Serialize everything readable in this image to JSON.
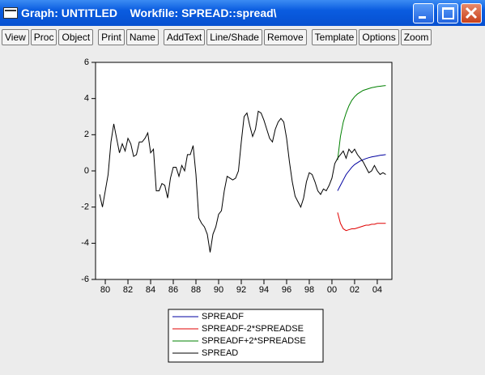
{
  "window": {
    "title": "Graph: UNTITLED    Workfile: SPREAD::spread\\"
  },
  "toolbar": [
    [
      "View",
      "Proc",
      "Object"
    ],
    [
      "Print",
      "Name"
    ],
    [
      "AddText",
      "Line/Shade",
      "Remove"
    ],
    [
      "Template",
      "Options",
      "Zoom"
    ]
  ],
  "chart_data": {
    "type": "line",
    "x": [
      1979.5,
      1979.75,
      1980,
      1980.25,
      1980.5,
      1980.75,
      1981,
      1981.25,
      1981.5,
      1981.75,
      1982,
      1982.25,
      1982.5,
      1982.75,
      1983,
      1983.25,
      1983.5,
      1983.75,
      1984,
      1984.25,
      1984.5,
      1984.75,
      1985,
      1985.25,
      1985.5,
      1985.75,
      1986,
      1986.25,
      1986.5,
      1986.75,
      1987,
      1987.25,
      1987.5,
      1987.75,
      1988,
      1988.25,
      1988.5,
      1988.75,
      1989,
      1989.25,
      1989.5,
      1989.75,
      1990,
      1990.25,
      1990.5,
      1990.75,
      1991,
      1991.25,
      1991.5,
      1991.75,
      1992,
      1992.25,
      1992.5,
      1992.75,
      1993,
      1993.25,
      1993.5,
      1993.75,
      1994,
      1994.25,
      1994.5,
      1994.75,
      1995,
      1995.25,
      1995.5,
      1995.75,
      1996,
      1996.25,
      1996.5,
      1996.75,
      1997,
      1997.25,
      1997.5,
      1997.75,
      1998,
      1998.25,
      1998.5,
      1998.75,
      1999,
      1999.25,
      1999.5,
      1999.75,
      2000,
      2000.25,
      2000.5,
      2000.75,
      2001,
      2001.25,
      2001.5,
      2001.75,
      2002,
      2002.25,
      2002.5,
      2002.75,
      2003,
      2003.25,
      2003.5,
      2003.75,
      2004,
      2004.25,
      2004.5,
      2004.75
    ],
    "series": [
      {
        "name": "SPREADF",
        "color": "#0000a0",
        "values": [
          null,
          null,
          null,
          null,
          null,
          null,
          null,
          null,
          null,
          null,
          null,
          null,
          null,
          null,
          null,
          null,
          null,
          null,
          null,
          null,
          null,
          null,
          null,
          null,
          null,
          null,
          null,
          null,
          null,
          null,
          null,
          null,
          null,
          null,
          null,
          null,
          null,
          null,
          null,
          null,
          null,
          null,
          null,
          null,
          null,
          null,
          null,
          null,
          null,
          null,
          null,
          null,
          null,
          null,
          null,
          null,
          null,
          null,
          null,
          null,
          null,
          null,
          null,
          null,
          null,
          null,
          null,
          null,
          null,
          null,
          null,
          null,
          null,
          null,
          null,
          null,
          null,
          null,
          null,
          null,
          null,
          null,
          null,
          null,
          -1.1,
          -0.8,
          -0.5,
          -0.2,
          0.0,
          0.2,
          0.35,
          0.45,
          0.55,
          0.62,
          0.68,
          0.73,
          0.77,
          0.8,
          0.83,
          0.86,
          0.88,
          0.9
        ]
      },
      {
        "name": "SPREADF-2*SPREADSE",
        "color": "#e00000",
        "values": [
          null,
          null,
          null,
          null,
          null,
          null,
          null,
          null,
          null,
          null,
          null,
          null,
          null,
          null,
          null,
          null,
          null,
          null,
          null,
          null,
          null,
          null,
          null,
          null,
          null,
          null,
          null,
          null,
          null,
          null,
          null,
          null,
          null,
          null,
          null,
          null,
          null,
          null,
          null,
          null,
          null,
          null,
          null,
          null,
          null,
          null,
          null,
          null,
          null,
          null,
          null,
          null,
          null,
          null,
          null,
          null,
          null,
          null,
          null,
          null,
          null,
          null,
          null,
          null,
          null,
          null,
          null,
          null,
          null,
          null,
          null,
          null,
          null,
          null,
          null,
          null,
          null,
          null,
          null,
          null,
          null,
          null,
          null,
          null,
          -2.3,
          -2.9,
          -3.2,
          -3.3,
          -3.25,
          -3.2,
          -3.2,
          -3.15,
          -3.1,
          -3.05,
          -3.0,
          -3.0,
          -2.95,
          -2.95,
          -2.9,
          -2.9,
          -2.9,
          -2.9
        ]
      },
      {
        "name": "SPREADF+2*SPREADSE",
        "color": "#008000",
        "values": [
          null,
          null,
          null,
          null,
          null,
          null,
          null,
          null,
          null,
          null,
          null,
          null,
          null,
          null,
          null,
          null,
          null,
          null,
          null,
          null,
          null,
          null,
          null,
          null,
          null,
          null,
          null,
          null,
          null,
          null,
          null,
          null,
          null,
          null,
          null,
          null,
          null,
          null,
          null,
          null,
          null,
          null,
          null,
          null,
          null,
          null,
          null,
          null,
          null,
          null,
          null,
          null,
          null,
          null,
          null,
          null,
          null,
          null,
          null,
          null,
          null,
          null,
          null,
          null,
          null,
          null,
          null,
          null,
          null,
          null,
          null,
          null,
          null,
          null,
          null,
          null,
          null,
          null,
          null,
          null,
          null,
          null,
          null,
          null,
          0.6,
          1.9,
          2.7,
          3.2,
          3.6,
          3.9,
          4.1,
          4.25,
          4.35,
          4.45,
          4.5,
          4.55,
          4.6,
          4.63,
          4.66,
          4.68,
          4.7,
          4.72
        ]
      },
      {
        "name": "SPREAD",
        "color": "#000000",
        "values": [
          -1.3,
          -2.0,
          -1.1,
          -0.2,
          1.6,
          2.6,
          1.8,
          1.0,
          1.5,
          1.1,
          1.8,
          1.5,
          0.8,
          0.9,
          1.6,
          1.6,
          1.8,
          2.1,
          1.0,
          1.2,
          -1.1,
          -1.1,
          -0.7,
          -0.8,
          -1.5,
          -0.4,
          0.2,
          0.2,
          -0.3,
          0.3,
          0.0,
          0.9,
          0.9,
          1.4,
          -0.2,
          -2.6,
          -2.9,
          -3.1,
          -3.5,
          -4.5,
          -3.5,
          -3.1,
          -2.4,
          -2.2,
          -1.1,
          -0.3,
          -0.4,
          -0.5,
          -0.4,
          0.0,
          1.6,
          3.0,
          3.2,
          2.5,
          1.9,
          2.3,
          3.3,
          3.2,
          2.8,
          2.3,
          1.8,
          1.6,
          2.3,
          2.7,
          2.9,
          2.7,
          1.8,
          0.5,
          -0.6,
          -1.4,
          -1.7,
          -2.0,
          -1.5,
          -0.6,
          -0.1,
          -0.2,
          -0.6,
          -1.1,
          -1.3,
          -1.0,
          -1.1,
          -0.8,
          -0.4,
          0.4,
          0.7,
          0.9,
          1.1,
          0.7,
          1.2,
          1.0,
          1.2,
          0.9,
          0.7,
          0.5,
          0.2,
          -0.1,
          0.0,
          0.3,
          0.0,
          -0.2,
          -0.1,
          -0.2
        ]
      }
    ],
    "xlim": [
      1979.14,
      2005.29
    ],
    "xticks": [
      {
        "value": 1980,
        "label": "80"
      },
      {
        "value": 1982,
        "label": "82"
      },
      {
        "value": 1984,
        "label": "84"
      },
      {
        "value": 1986,
        "label": "86"
      },
      {
        "value": 1988,
        "label": "88"
      },
      {
        "value": 1990,
        "label": "90"
      },
      {
        "value": 1992,
        "label": "92"
      },
      {
        "value": 1994,
        "label": "94"
      },
      {
        "value": 1996,
        "label": "96"
      },
      {
        "value": 1998,
        "label": "98"
      },
      {
        "value": 2000,
        "label": "00"
      },
      {
        "value": 2002,
        "label": "02"
      },
      {
        "value": 2004,
        "label": "04"
      }
    ],
    "ylim": [
      -6,
      6
    ],
    "yticks": [
      -6,
      -4,
      -2,
      0,
      2,
      4,
      6
    ]
  }
}
